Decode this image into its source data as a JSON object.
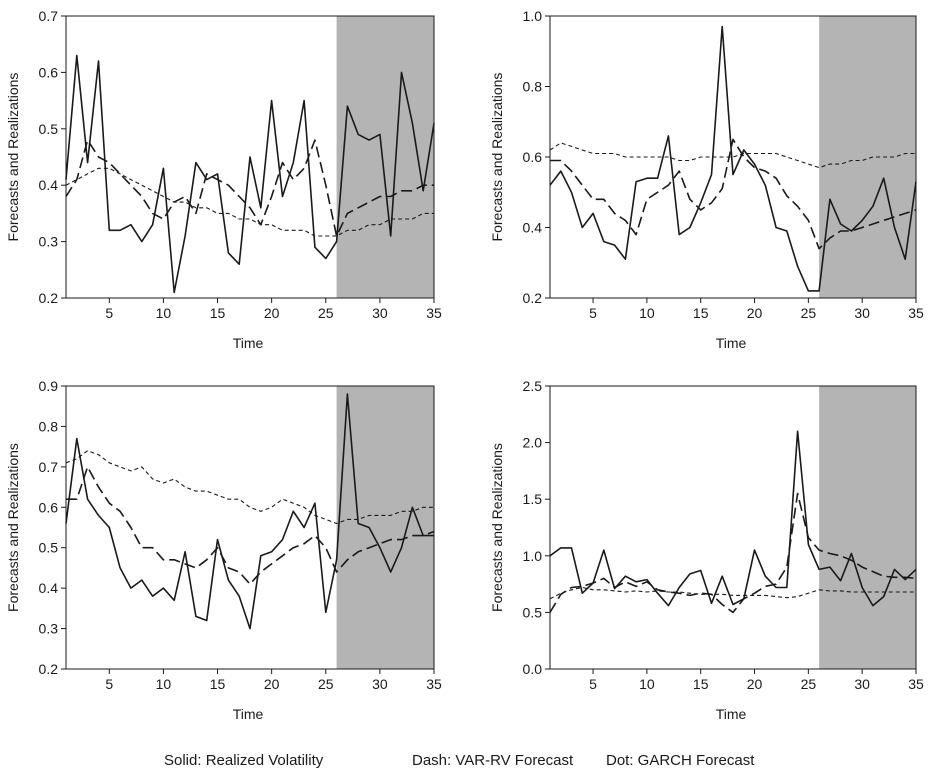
{
  "caption": {
    "solid": "Solid: Realized Volatility",
    "dash": "Dash: VAR-RV Forecast",
    "dot": "Dot: GARCH Forecast"
  },
  "colors": {
    "line": "#1a1a1a",
    "shade": "#b4b4b4",
    "frame": "#1a1a1a"
  },
  "chart_data": [
    {
      "type": "line",
      "title": "",
      "xlabel": "Time",
      "ylabel": "Forecasts and Realizations",
      "xlim": [
        1,
        35
      ],
      "ylim": [
        0.2,
        0.7
      ],
      "xticks": [
        5,
        10,
        15,
        20,
        25,
        30,
        35
      ],
      "yticks": [
        "0.2",
        "0.3",
        "0.4",
        "0.5",
        "0.6",
        "0.7"
      ],
      "shaded_region": [
        26,
        35
      ],
      "x": [
        1,
        2,
        3,
        4,
        5,
        6,
        7,
        8,
        9,
        10,
        11,
        12,
        13,
        14,
        15,
        16,
        17,
        18,
        19,
        20,
        21,
        22,
        23,
        24,
        25,
        26,
        27,
        28,
        29,
        30,
        31,
        32,
        33,
        34,
        35
      ],
      "series": [
        {
          "style": "solid",
          "values": [
            0.41,
            0.63,
            0.44,
            0.62,
            0.32,
            0.32,
            0.33,
            0.3,
            0.33,
            0.43,
            0.21,
            0.31,
            0.44,
            0.41,
            0.42,
            0.28,
            0.26,
            0.45,
            0.36,
            0.55,
            0.38,
            0.44,
            0.55,
            0.29,
            0.27,
            0.3,
            0.54,
            0.49,
            0.48,
            0.49,
            0.31,
            0.6,
            0.51,
            0.39,
            0.51
          ]
        },
        {
          "style": "dash",
          "values": [
            0.38,
            0.41,
            0.48,
            0.45,
            0.44,
            0.42,
            0.4,
            0.38,
            0.35,
            0.34,
            0.37,
            0.38,
            0.35,
            0.42,
            0.41,
            0.4,
            0.38,
            0.36,
            0.33,
            0.38,
            0.44,
            0.41,
            0.43,
            0.48,
            0.4,
            0.31,
            0.35,
            0.36,
            0.37,
            0.38,
            0.38,
            0.39,
            0.39,
            0.4,
            0.4
          ]
        },
        {
          "style": "dot",
          "values": [
            0.4,
            0.41,
            0.42,
            0.43,
            0.43,
            0.42,
            0.41,
            0.4,
            0.39,
            0.38,
            0.37,
            0.37,
            0.36,
            0.36,
            0.35,
            0.35,
            0.34,
            0.34,
            0.33,
            0.33,
            0.32,
            0.32,
            0.32,
            0.31,
            0.31,
            0.31,
            0.32,
            0.32,
            0.33,
            0.33,
            0.34,
            0.34,
            0.34,
            0.35,
            0.35
          ]
        }
      ]
    },
    {
      "type": "line",
      "title": "",
      "xlabel": "Time",
      "ylabel": "Forecasts and Realizations",
      "xlim": [
        1,
        35
      ],
      "ylim": [
        0.2,
        1.0
      ],
      "xticks": [
        5,
        10,
        15,
        20,
        25,
        30,
        35
      ],
      "yticks": [
        "0.2",
        "0.4",
        "0.6",
        "0.8",
        "1.0"
      ],
      "shaded_region": [
        26,
        35
      ],
      "x": [
        1,
        2,
        3,
        4,
        5,
        6,
        7,
        8,
        9,
        10,
        11,
        12,
        13,
        14,
        15,
        16,
        17,
        18,
        19,
        20,
        21,
        22,
        23,
        24,
        25,
        26,
        27,
        28,
        29,
        30,
        31,
        32,
        33,
        34,
        35
      ],
      "series": [
        {
          "style": "solid",
          "values": [
            0.52,
            0.56,
            0.5,
            0.4,
            0.44,
            0.36,
            0.35,
            0.31,
            0.53,
            0.54,
            0.54,
            0.66,
            0.38,
            0.4,
            0.47,
            0.55,
            0.97,
            0.55,
            0.62,
            0.58,
            0.52,
            0.4,
            0.39,
            0.29,
            0.22,
            0.22,
            0.48,
            0.41,
            0.39,
            0.42,
            0.46,
            0.54,
            0.4,
            0.31,
            0.53
          ]
        },
        {
          "style": "dash",
          "values": [
            0.59,
            0.59,
            0.56,
            0.52,
            0.48,
            0.48,
            0.44,
            0.42,
            0.38,
            0.48,
            0.5,
            0.52,
            0.56,
            0.48,
            0.45,
            0.47,
            0.51,
            0.65,
            0.6,
            0.57,
            0.56,
            0.54,
            0.49,
            0.46,
            0.42,
            0.34,
            0.37,
            0.39,
            0.39,
            0.4,
            0.41,
            0.42,
            0.43,
            0.44,
            0.45
          ]
        },
        {
          "style": "dot",
          "values": [
            0.62,
            0.64,
            0.63,
            0.62,
            0.61,
            0.61,
            0.61,
            0.6,
            0.6,
            0.6,
            0.6,
            0.6,
            0.59,
            0.59,
            0.6,
            0.6,
            0.6,
            0.6,
            0.61,
            0.61,
            0.61,
            0.61,
            0.6,
            0.59,
            0.58,
            0.57,
            0.58,
            0.58,
            0.59,
            0.59,
            0.6,
            0.6,
            0.6,
            0.61,
            0.61
          ]
        }
      ]
    },
    {
      "type": "line",
      "title": "",
      "xlabel": "Time",
      "ylabel": "Forecasts and Realizations",
      "xlim": [
        1,
        35
      ],
      "ylim": [
        0.2,
        0.9
      ],
      "xticks": [
        5,
        10,
        15,
        20,
        25,
        30,
        35
      ],
      "yticks": [
        "0.2",
        "0.3",
        "0.4",
        "0.5",
        "0.6",
        "0.7",
        "0.8",
        "0.9"
      ],
      "shaded_region": [
        26,
        35
      ],
      "x": [
        1,
        2,
        3,
        4,
        5,
        6,
        7,
        8,
        9,
        10,
        11,
        12,
        13,
        14,
        15,
        16,
        17,
        18,
        19,
        20,
        21,
        22,
        23,
        24,
        25,
        26,
        27,
        28,
        29,
        30,
        31,
        32,
        33,
        34,
        35
      ],
      "series": [
        {
          "style": "solid",
          "values": [
            0.56,
            0.77,
            0.62,
            0.58,
            0.55,
            0.45,
            0.4,
            0.42,
            0.38,
            0.4,
            0.37,
            0.49,
            0.33,
            0.32,
            0.52,
            0.42,
            0.38,
            0.3,
            0.48,
            0.49,
            0.52,
            0.59,
            0.55,
            0.61,
            0.34,
            0.47,
            0.88,
            0.56,
            0.55,
            0.5,
            0.44,
            0.5,
            0.6,
            0.53,
            0.53
          ]
        },
        {
          "style": "dash",
          "values": [
            0.62,
            0.62,
            0.7,
            0.65,
            0.61,
            0.59,
            0.55,
            0.5,
            0.5,
            0.47,
            0.47,
            0.46,
            0.45,
            0.47,
            0.5,
            0.45,
            0.44,
            0.41,
            0.44,
            0.46,
            0.48,
            0.5,
            0.51,
            0.53,
            0.5,
            0.44,
            0.47,
            0.49,
            0.5,
            0.51,
            0.52,
            0.52,
            0.53,
            0.53,
            0.54
          ]
        },
        {
          "style": "dot",
          "values": [
            0.71,
            0.72,
            0.74,
            0.73,
            0.71,
            0.7,
            0.69,
            0.7,
            0.67,
            0.66,
            0.67,
            0.65,
            0.64,
            0.64,
            0.63,
            0.62,
            0.62,
            0.6,
            0.59,
            0.6,
            0.62,
            0.61,
            0.6,
            0.58,
            0.57,
            0.56,
            0.57,
            0.57,
            0.58,
            0.58,
            0.58,
            0.59,
            0.59,
            0.6,
            0.6
          ]
        }
      ]
    },
    {
      "type": "line",
      "title": "",
      "xlabel": "Time",
      "ylabel": "Forecasts and Realizations",
      "xlim": [
        1,
        35
      ],
      "ylim": [
        0.0,
        2.5
      ],
      "xticks": [
        5,
        10,
        15,
        20,
        25,
        30,
        35
      ],
      "yticks": [
        "0.0",
        "0.5",
        "1.0",
        "1.5",
        "2.0",
        "2.5"
      ],
      "shaded_region": [
        26,
        35
      ],
      "x": [
        1,
        2,
        3,
        4,
        5,
        6,
        7,
        8,
        9,
        10,
        11,
        12,
        13,
        14,
        15,
        16,
        17,
        18,
        19,
        20,
        21,
        22,
        23,
        24,
        25,
        26,
        27,
        28,
        29,
        30,
        31,
        32,
        33,
        34,
        35
      ],
      "series": [
        {
          "style": "solid",
          "values": [
            1.0,
            1.07,
            1.07,
            0.67,
            0.76,
            1.05,
            0.71,
            0.82,
            0.77,
            0.79,
            0.67,
            0.56,
            0.72,
            0.84,
            0.87,
            0.58,
            0.82,
            0.57,
            0.62,
            1.05,
            0.82,
            0.72,
            0.72,
            2.1,
            1.1,
            0.88,
            0.9,
            0.78,
            1.02,
            0.72,
            0.56,
            0.64,
            0.88,
            0.79,
            0.88
          ]
        },
        {
          "style": "dash",
          "values": [
            0.5,
            0.66,
            0.72,
            0.73,
            0.76,
            0.8,
            0.72,
            0.77,
            0.73,
            0.77,
            0.7,
            0.68,
            0.67,
            0.65,
            0.67,
            0.66,
            0.57,
            0.5,
            0.62,
            0.67,
            0.73,
            0.75,
            0.9,
            1.55,
            1.16,
            1.05,
            1.02,
            1.0,
            0.96,
            0.9,
            0.86,
            0.82,
            0.81,
            0.81,
            0.8
          ]
        },
        {
          "style": "dot",
          "values": [
            0.62,
            0.67,
            0.7,
            0.72,
            0.7,
            0.7,
            0.69,
            0.68,
            0.69,
            0.68,
            0.69,
            0.68,
            0.68,
            0.67,
            0.66,
            0.66,
            0.66,
            0.65,
            0.65,
            0.65,
            0.65,
            0.64,
            0.63,
            0.64,
            0.67,
            0.7,
            0.69,
            0.69,
            0.68,
            0.68,
            0.68,
            0.68,
            0.68,
            0.68,
            0.68
          ]
        }
      ]
    }
  ]
}
